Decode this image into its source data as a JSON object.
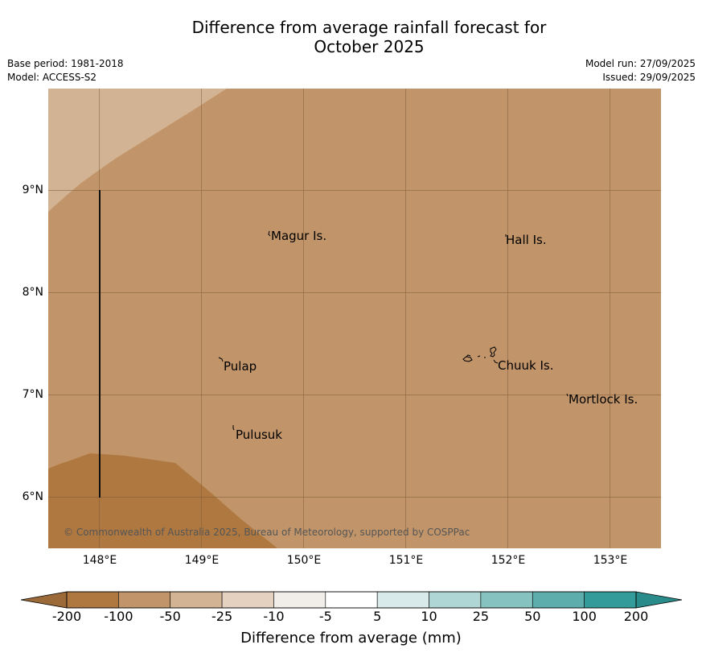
{
  "title": {
    "line1": "Difference from average rainfall forecast for",
    "line2": "October 2025"
  },
  "meta_left": {
    "base_period": "Base period: 1981-2018",
    "model": "Model: ACCESS-S2"
  },
  "meta_right": {
    "model_run": "Model run: 27/09/2025",
    "issued": "Issued: 29/09/2025"
  },
  "map": {
    "lat_labels": [
      "9°N",
      "8°N",
      "7°N",
      "6°N"
    ],
    "lon_labels": [
      "148°E",
      "149°E",
      "150°E",
      "151°E",
      "152°E",
      "153°E"
    ],
    "places": {
      "magur": "Magur Is.",
      "hall": "Hall Is.",
      "pulap": "Pulap",
      "chuuk": "Chuuk Is.",
      "mortlock": "Mortlock Is.",
      "pulusuk": "Pulusuk"
    },
    "copyright": "© Commonwealth of Australia 2025, Bureau of Meteorology, supported by COSPPac",
    "colors": {
      "minus_100_to_200": "#ae7840",
      "minus_50_to_100": "#c19569",
      "minus_25_to_50": "#d2b393",
      "grid": "#7a5a38"
    }
  },
  "colorbar": {
    "ticks": [
      "-200",
      "-100",
      "-50",
      "-25",
      "-10",
      "-5",
      "5",
      "10",
      "25",
      "50",
      "100",
      "200"
    ],
    "colors": [
      "#ae7840",
      "#c19569",
      "#d2b393",
      "#e4d1c0",
      "#f1eee9",
      "#ffffff",
      "#d8ebea",
      "#afd6d5",
      "#86c2c0",
      "#5cadab",
      "#339c9a"
    ],
    "extend_low_color": "#9b6a38",
    "extend_high_color": "#2a8c8a",
    "label": "Difference from average (mm)"
  }
}
